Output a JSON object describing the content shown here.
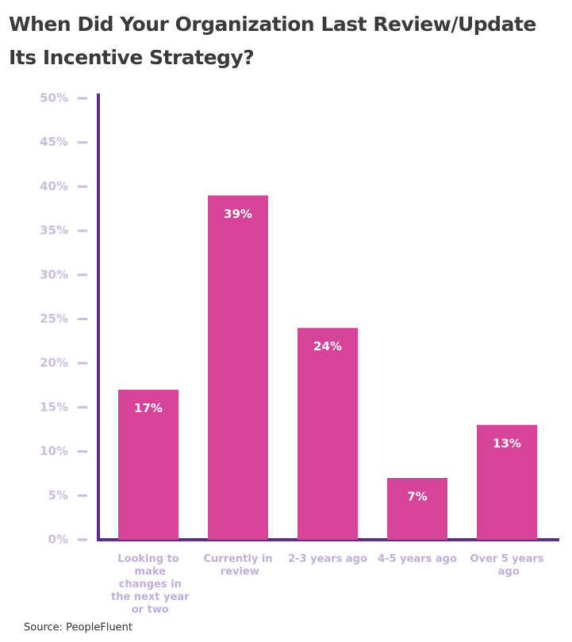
{
  "chart_data": {
    "type": "bar",
    "title": "When Did Your Organization Last Review/Update Its Incentive Strategy?",
    "categories": [
      "Looking to make changes in the next year or two",
      "Currently in review",
      "2-3 years ago",
      "4-5 years ago",
      "Over 5 years ago"
    ],
    "values": [
      17,
      39,
      24,
      7,
      13
    ],
    "value_labels": [
      "17%",
      "39%",
      "24%",
      "7%",
      "13%"
    ],
    "color": "#d6449a",
    "ylim": [
      0,
      50
    ],
    "yticks": [
      {
        "value": 0,
        "label": "0%"
      },
      {
        "value": 5,
        "label": "5%"
      },
      {
        "value": 10,
        "label": "10%"
      },
      {
        "value": 15,
        "label": "15%"
      },
      {
        "value": 20,
        "label": "20%"
      },
      {
        "value": 25,
        "label": "25%"
      },
      {
        "value": 30,
        "label": "30%"
      },
      {
        "value": 35,
        "label": "35%"
      },
      {
        "value": 40,
        "label": "40%"
      },
      {
        "value": 45,
        "label": "45%"
      },
      {
        "value": 50,
        "label": "50%"
      }
    ],
    "source": "Source: PeopleFluent"
  }
}
